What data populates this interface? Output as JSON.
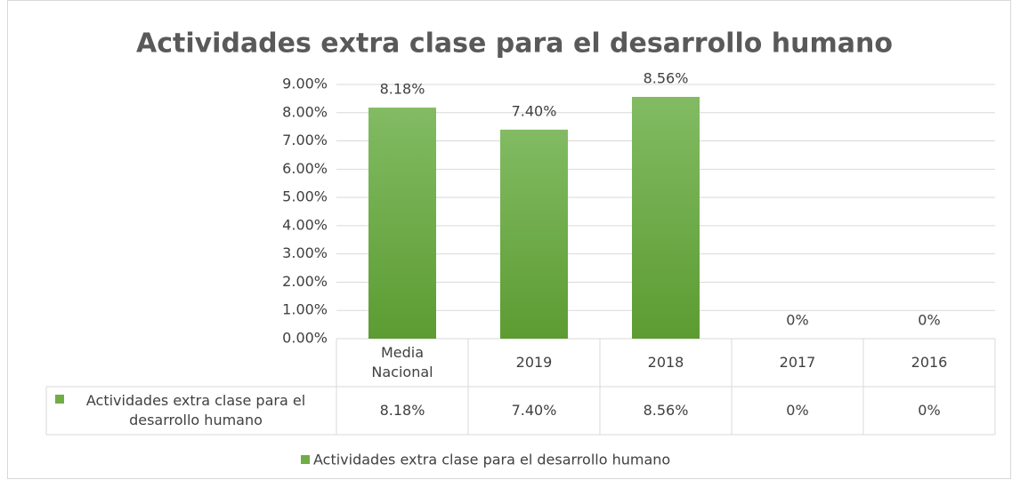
{
  "chart_data": {
    "type": "bar",
    "title": "Actividades extra clase para el desarrollo humano",
    "categories": [
      "Media Nacional",
      "2019",
      "2018",
      "2017",
      "2016"
    ],
    "series": [
      {
        "name": "Actividades extra clase para el desarrollo humano",
        "color": "#70ad47",
        "values": [
          8.18,
          7.4,
          8.56,
          0,
          0
        ],
        "value_labels": [
          "8.18%",
          "7.40%",
          "8.56%",
          "0%",
          "0%"
        ]
      }
    ],
    "ylim": [
      0,
      9
    ],
    "yticks": [
      {
        "value": 0,
        "label": "0.00%"
      },
      {
        "value": 1,
        "label": "1.00%"
      },
      {
        "value": 2,
        "label": "2.00%"
      },
      {
        "value": 3,
        "label": "3.00%"
      },
      {
        "value": 4,
        "label": "4.00%"
      },
      {
        "value": 5,
        "label": "5.00%"
      },
      {
        "value": 6,
        "label": "6.00%"
      },
      {
        "value": 7,
        "label": "7.00%"
      },
      {
        "value": 8,
        "label": "8.00%"
      },
      {
        "value": 9,
        "label": "9.00%"
      }
    ],
    "grid": true,
    "data_table": true,
    "legend": "bottom"
  }
}
